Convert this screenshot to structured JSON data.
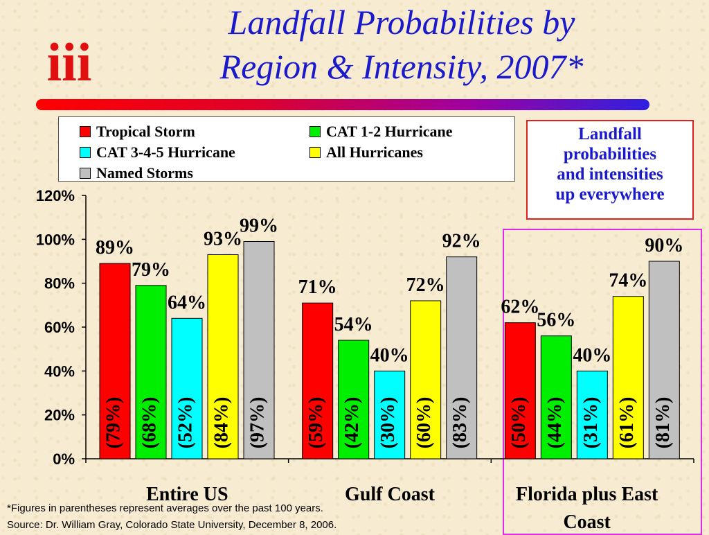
{
  "title_line1": "Landfall Probabilities by",
  "title_line2": "Region & Intensity, 2007*",
  "logo_text": "iii",
  "note": {
    "line1": "Landfall",
    "line2": "probabilities",
    "line3": "and intensities",
    "line4": "up everywhere"
  },
  "footnote_line1": "*Figures in parentheses represent averages over the past 100 years.",
  "footnote_line2": "Source: Dr. William Gray, Colorado State University, December 8, 2006.",
  "colors": {
    "title": "#1a1acc",
    "highlight_box": "#e02ce0",
    "note_border": "#e02020"
  },
  "chart_data": {
    "type": "bar",
    "categories": [
      "Entire US",
      "Gulf Coast",
      "Florida plus East Coast"
    ],
    "category_label_lines": [
      [
        "Entire US"
      ],
      [
        "Gulf Coast"
      ],
      [
        "Florida plus East",
        "Coast"
      ]
    ],
    "ylim": [
      0,
      120
    ],
    "yticks": [
      0,
      20,
      40,
      60,
      80,
      100,
      120
    ],
    "ytick_labels": [
      "0%",
      "20%",
      "40%",
      "60%",
      "80%",
      "100%",
      "120%"
    ],
    "legend_position": "top",
    "series": [
      {
        "name": "Tropical Storm",
        "color": "#ff0000",
        "values": [
          89,
          71,
          62
        ],
        "value_labels": [
          "89%",
          "71%",
          "62%"
        ],
        "averages": [
          "(79%)",
          "(59%)",
          "(50%)"
        ]
      },
      {
        "name": "CAT 1-2 Hurricane",
        "color": "#00ee00",
        "values": [
          79,
          54,
          56
        ],
        "value_labels": [
          "79%",
          "54%",
          "56%"
        ],
        "averages": [
          "(68%)",
          "(42%)",
          "(44%)"
        ]
      },
      {
        "name": "CAT 3-4-5 Hurricane",
        "color": "#00ffff",
        "values": [
          64,
          40,
          40
        ],
        "value_labels": [
          "64%",
          "40%",
          "40%"
        ],
        "averages": [
          "(52%)",
          "(30%)",
          "(31%)"
        ]
      },
      {
        "name": "All Hurricanes",
        "color": "#ffff00",
        "values": [
          93,
          72,
          74
        ],
        "value_labels": [
          "93%",
          "72%",
          "74%"
        ],
        "averages": [
          "(84%)",
          "(60%)",
          "(61%)"
        ]
      },
      {
        "name": "Named Storms",
        "color": "#c0c0c0",
        "values": [
          99,
          92,
          90
        ],
        "value_labels": [
          "99%",
          "92%",
          "90%"
        ],
        "averages": [
          "(97%)",
          "(83%)",
          "(81%)"
        ]
      }
    ]
  }
}
